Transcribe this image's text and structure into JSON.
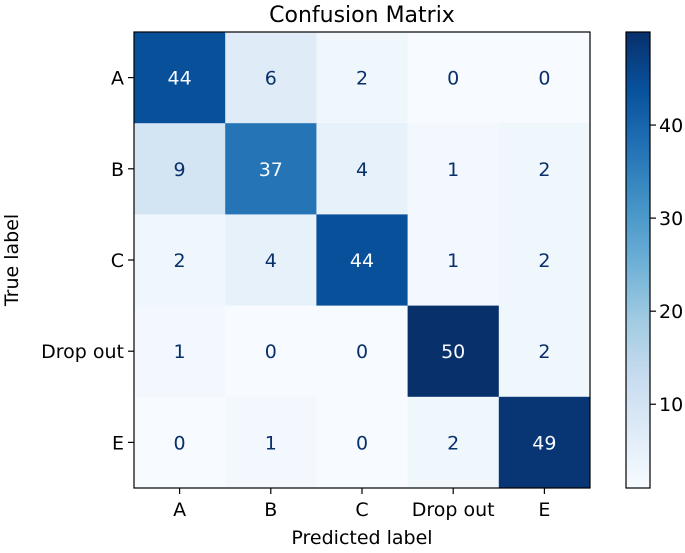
{
  "chart_data": {
    "type": "heatmap",
    "title": "Confusion Matrix",
    "xlabel": "Predicted label",
    "ylabel": "True label",
    "x_categories": [
      "A",
      "B",
      "C",
      "Drop out",
      "E"
    ],
    "y_categories": [
      "A",
      "B",
      "C",
      "Drop out",
      "E"
    ],
    "values": [
      [
        44,
        6,
        2,
        0,
        0
      ],
      [
        9,
        37,
        4,
        1,
        2
      ],
      [
        2,
        4,
        44,
        1,
        2
      ],
      [
        1,
        0,
        0,
        50,
        2
      ],
      [
        0,
        1,
        0,
        2,
        49
      ]
    ],
    "colorscale": "Blues",
    "vmin": 0,
    "vmax": 50,
    "colorbar_ticks": [
      10,
      20,
      30,
      40
    ],
    "colorbar_tick_labels": [
      "10",
      "20",
      "30",
      "40"
    ],
    "grid": false
  }
}
